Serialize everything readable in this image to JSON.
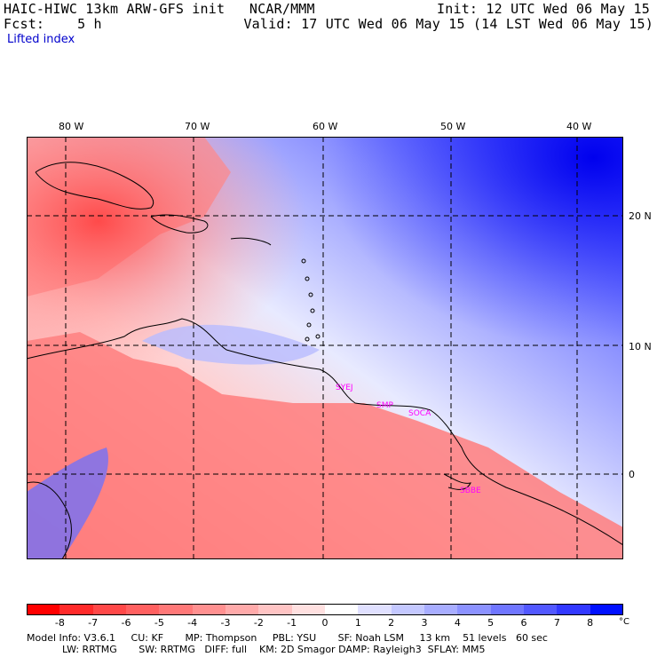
{
  "header": {
    "left_line1": "HAIC-HIWC 13km ARW-GFS init   NCAR/MMM",
    "left_line2": "Fcst:    5 h",
    "subtitle": "Lifted index",
    "right_line1": "Init: 12 UTC Wed 06 May 15",
    "right_line2": "Valid: 17 UTC Wed 06 May 15 (14 LST Wed 06 May 15)"
  },
  "map": {
    "lon_ticks": [
      "80 W",
      "70 W",
      "60 W",
      "50 W",
      "40 W"
    ],
    "lat_ticks": [
      "20 N",
      "10 N",
      "0"
    ],
    "stations": [
      {
        "code": "SYEJ",
        "lon": -58.3,
        "lat": 6.5
      },
      {
        "code": "SMP",
        "lon": -55.2,
        "lat": 5.5
      },
      {
        "code": "SOCA",
        "lon": -52.5,
        "lat": 4.8
      },
      {
        "code": "SBBE",
        "lon": -48.5,
        "lat": -1.4
      }
    ],
    "colors": {
      "negative_strong": "#ff3344",
      "negative_light": "#ffc8c8",
      "neutral": "#ffffff",
      "positive_light": "#c8ccff",
      "positive_strong": "#0000ee",
      "station_label": "#ff00ff"
    }
  },
  "colorbar": {
    "labels": [
      "-8",
      "-7",
      "-6",
      "-5",
      "-4",
      "-3",
      "-2",
      "-1",
      "0",
      "1",
      "2",
      "3",
      "4",
      "5",
      "6",
      "7",
      "8"
    ],
    "unit": "°C",
    "colors": [
      "#ff0000",
      "#ff2a2a",
      "#ff4848",
      "#ff6060",
      "#ff7878",
      "#ff9090",
      "#ffaaaa",
      "#ffc4c4",
      "#ffe0e0",
      "#ffffff",
      "#e0e0ff",
      "#c4c8ff",
      "#a8adff",
      "#8c92ff",
      "#7076ff",
      "#5258ff",
      "#3238ff",
      "#0010ff"
    ]
  },
  "footer": {
    "line1": "Model Info: V3.6.1     CU: KF       MP: Thompson     PBL: YSU       SF: Noah LSM     13 km    51 levels   60 sec",
    "line2": "LW: RRTMG       SW: RRTMG   DIFF: full    KM: 2D Smagor DAMP: Rayleigh3  SFLAY: MM5"
  }
}
